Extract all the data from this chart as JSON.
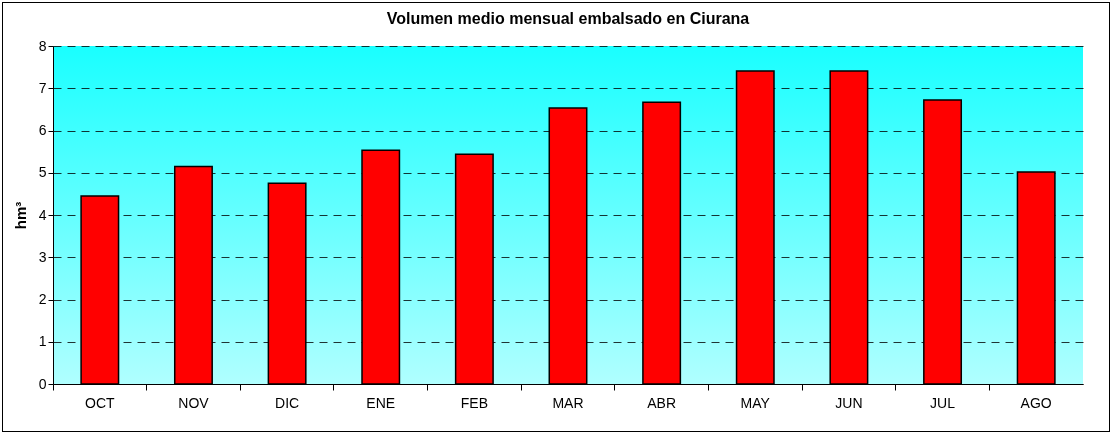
{
  "chart_data": {
    "type": "bar",
    "title": "Volumen medio mensual embalsado en Ciurana",
    "ylabel": "hm³",
    "categories": [
      "OCT",
      "NOV",
      "DIC",
      "ENE",
      "FEB",
      "MAR",
      "ABR",
      "MAY",
      "JUN",
      "JUL",
      "AGO"
    ],
    "values": [
      4.45,
      5.15,
      4.75,
      5.53,
      5.44,
      6.53,
      6.67,
      7.41,
      7.41,
      6.72,
      5.02
    ],
    "color": "#ff0000",
    "ylim": [
      0,
      8
    ],
    "yticks": [
      0,
      1,
      2,
      3,
      4,
      5,
      6,
      7,
      8
    ],
    "grid": "y"
  }
}
